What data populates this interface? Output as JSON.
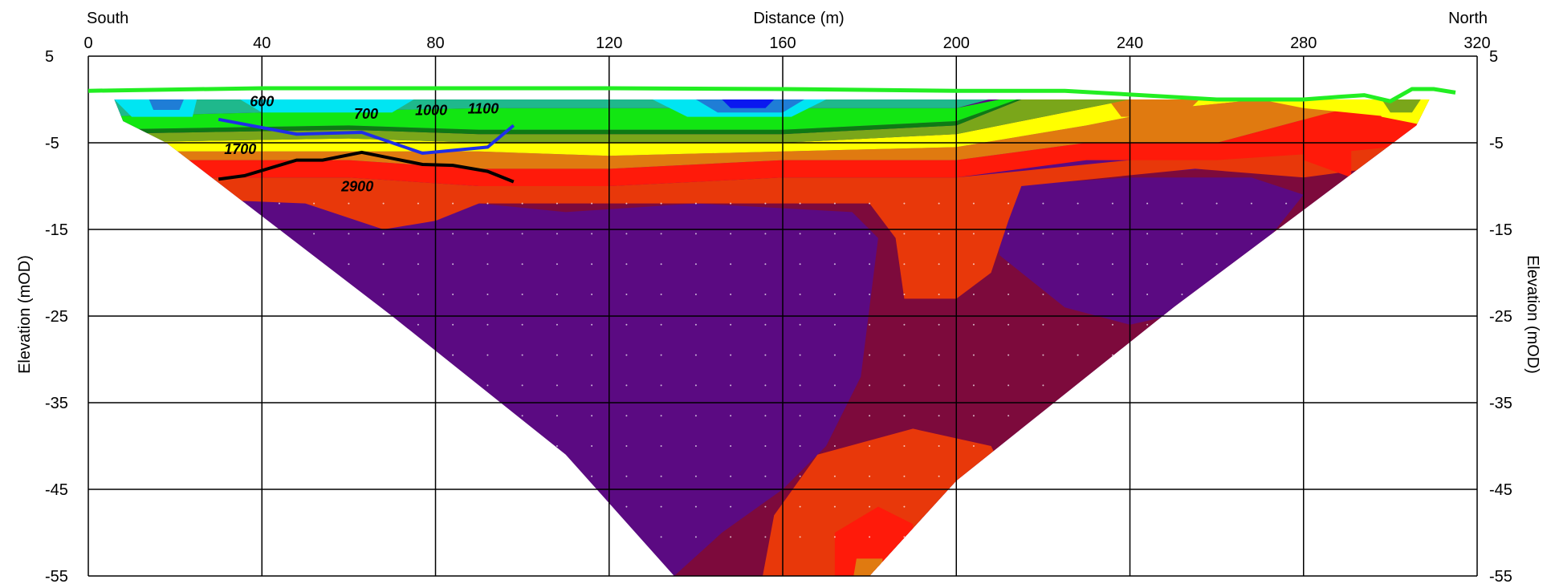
{
  "chart_data": {
    "type": "heatmap",
    "title": "",
    "xlabel": "Distance (m)",
    "ylabel_left": "Elevation (mOD)",
    "ylabel_right": "Elevation (mOD)",
    "direction_left": "South",
    "direction_right": "North",
    "xlim": [
      0,
      320
    ],
    "ylim": [
      -55,
      5
    ],
    "x_ticks": [
      0,
      40,
      80,
      120,
      160,
      200,
      240,
      280,
      320
    ],
    "y_ticks": [
      5,
      -5,
      -15,
      -25,
      -35,
      -45,
      -55
    ],
    "grid": true,
    "colors": {
      "cyan": "#00e5f2",
      "blue": "#1f7dd6",
      "deep_blue": "#0a18f0",
      "teal": "#1fb88c",
      "lime": "#12e612",
      "dark_green": "#0e7a14",
      "olive": "#7aa61a",
      "yellow": "#ffff00",
      "orange": "#e07a10",
      "red": "#ff1a0a",
      "orange_red": "#e8380a",
      "maroon": "#7d0a3c",
      "purple": "#5b0a82",
      "surface_line": "#22ee22",
      "blue_line": "#1f2ee8",
      "black_line": "#000000"
    },
    "surface_profile": {
      "x": [
        0,
        40,
        80,
        120,
        160,
        200,
        225,
        260,
        280,
        288,
        294,
        300,
        305,
        310,
        315
      ],
      "y": [
        1.0,
        1.3,
        1.3,
        1.3,
        1.2,
        1.0,
        1.0,
        0.0,
        0.0,
        0.3,
        0.5,
        -0.2,
        1.2,
        1.2,
        0.8
      ]
    },
    "blue_line": {
      "x": [
        30,
        48,
        63,
        77,
        92,
        98
      ],
      "y": [
        -2.3,
        -4.0,
        -3.8,
        -6.2,
        -5.5,
        -3.0
      ]
    },
    "black_line": {
      "x": [
        30,
        36,
        48,
        54,
        63,
        70,
        77,
        84,
        92,
        98
      ],
      "y": [
        -9.2,
        -8.8,
        -7.0,
        -7.0,
        -6.1,
        -6.8,
        -7.5,
        -7.6,
        -8.3,
        -9.5
      ]
    },
    "contour_labels": [
      {
        "text": "600",
        "x": 40,
        "y": -0.8
      },
      {
        "text": "700",
        "x": 64,
        "y": -2.2
      },
      {
        "text": "1000",
        "x": 79,
        "y": -1.8
      },
      {
        "text": "1100",
        "x": 91,
        "y": -1.6
      },
      {
        "text": "1700",
        "x": 35,
        "y": -6.3
      },
      {
        "text": "2900",
        "x": 62,
        "y": -10.6
      }
    ]
  }
}
